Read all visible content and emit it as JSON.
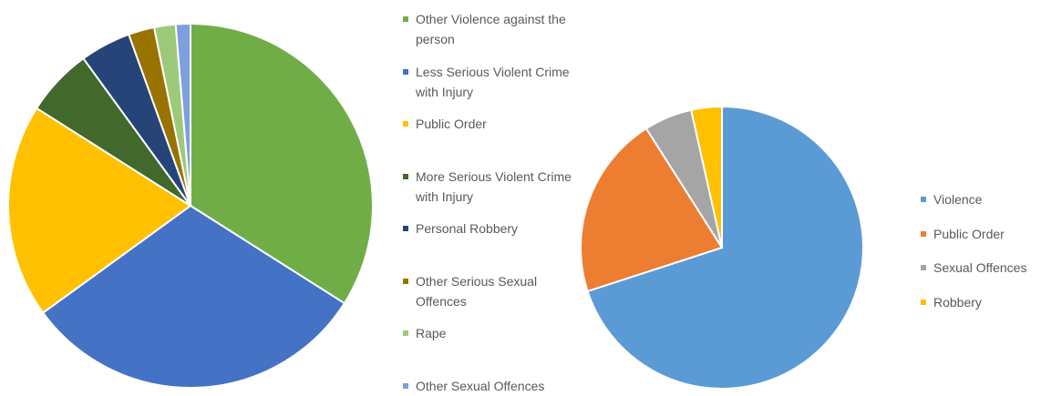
{
  "chart_data": [
    {
      "type": "pie",
      "categories": [
        "Other Violence against the person",
        "Less Serious Violent Crime with Injury",
        "Public Order",
        "More Serious Violent Crime with Injury",
        "Personal Robbery",
        "Other Serious Sexual Offences",
        "Rape",
        "Other Sexual Offences"
      ],
      "values": [
        34,
        31,
        19,
        6,
        4.5,
        2.3,
        1.9,
        1.3
      ],
      "colors": [
        "#70ad47",
        "#4472c4",
        "#ffc000",
        "#43682b",
        "#264478",
        "#997300",
        "#9dc97a",
        "#7f9fdc"
      ]
    },
    {
      "type": "pie",
      "categories": [
        "Violence",
        "Public Order",
        "Sexual Offences",
        "Robbery"
      ],
      "values": [
        70,
        21,
        5.5,
        3.5
      ],
      "colors": [
        "#5b9bd5",
        "#ed7d31",
        "#a5a5a5",
        "#ffc000"
      ]
    }
  ]
}
